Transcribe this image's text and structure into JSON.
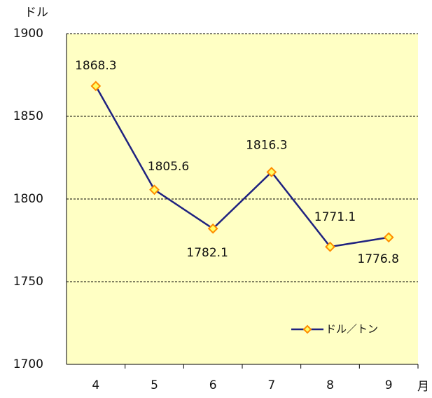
{
  "chart_data": {
    "type": "line",
    "y_label": "ドル",
    "x_label": "月",
    "categories": [
      "4",
      "5",
      "6",
      "7",
      "8",
      "9"
    ],
    "series": [
      {
        "name": "ドル／トン",
        "color": "#1f2280",
        "marker_color": "#ff8c00",
        "marker_fill": "#ffff66",
        "values": [
          1868.3,
          1805.6,
          1782.1,
          1816.3,
          1771.1,
          1776.8
        ]
      }
    ],
    "ylim": [
      1700,
      1900
    ],
    "yticks": [
      1700,
      1750,
      1800,
      1850,
      1900
    ],
    "grid": true,
    "legend": "lower right",
    "background": "#ffffc4"
  }
}
